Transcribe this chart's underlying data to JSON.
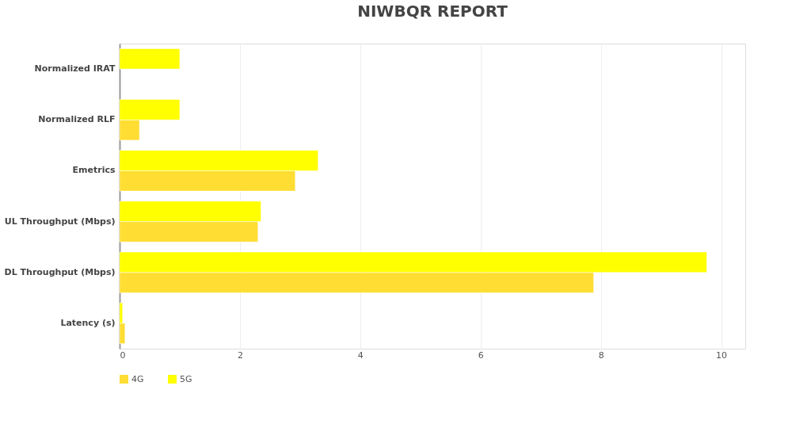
{
  "chart_data": {
    "type": "bar",
    "orientation": "horizontal",
    "title": "NIWBQR REPORT",
    "categories": [
      "Normalized IRAT",
      "Normalized RLF",
      "Emetrics",
      "UL Throughput (Mbps)",
      "DL Throughput (Mbps)",
      "Latency (s)"
    ],
    "series": [
      {
        "name": "4G",
        "color": "#ffdd33",
        "values": [
          null,
          0.33,
          2.92,
          2.3,
          7.88,
          0.09
        ]
      },
      {
        "name": "5G",
        "color": "#ffff00",
        "values": [
          1.0,
          1.0,
          3.3,
          2.35,
          9.76,
          0.05
        ]
      }
    ],
    "xlim": [
      0,
      10.4
    ],
    "xticks": [
      0,
      2,
      4,
      6,
      8,
      10
    ],
    "grid": "x",
    "legend": "bottom left"
  }
}
